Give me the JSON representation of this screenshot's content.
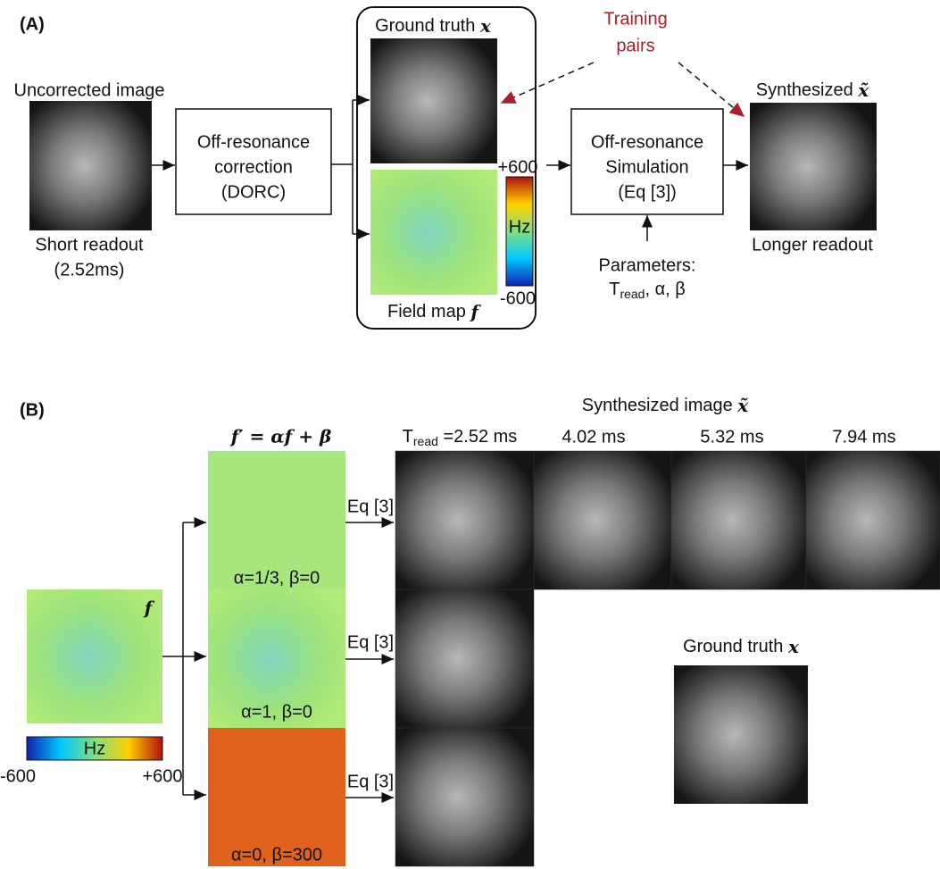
{
  "panel_a": {
    "label": "(A)",
    "input_title": "Uncorrected image",
    "input_caption": [
      "Short readout",
      "(2.52ms)"
    ],
    "correction_box": [
      "Off-resonance",
      "correction",
      "(DORC)"
    ],
    "ground_truth": {
      "text": "Ground truth",
      "symbol": "x"
    },
    "colorbar": {
      "max": "+600",
      "unit": "Hz",
      "min": "-600"
    },
    "field_map": {
      "text": "Field map",
      "symbol": "f"
    },
    "training_pairs": [
      "Training",
      "pairs"
    ],
    "simulation_box": [
      "Off-resonance",
      "Simulation",
      "(Eq [3])"
    ],
    "parameters": {
      "title": "Parameters:",
      "base": "T",
      "sub": "read",
      "rest": ", α, β"
    },
    "synthesized": {
      "text": "Synthesized",
      "symbol": "x̃"
    },
    "output_caption": "Longer readout"
  },
  "panel_b": {
    "label": "(B)",
    "title": {
      "text": "Synthesized image",
      "symbol": "x̃"
    },
    "formula": "f′ = αf + β",
    "first_header": {
      "base": "T",
      "sub": "read",
      "rest": " =2.52 ms"
    },
    "headers": [
      "4.02 ms",
      "5.32 ms",
      "7.94 ms"
    ],
    "eq_labels": [
      "Eq [3]",
      "Eq [3]",
      "Eq [3]"
    ],
    "map_labels": [
      "α=1/3, β=0",
      "α=1, β=0",
      "α=0, β=300"
    ],
    "field_symbol": "f",
    "colorbar": {
      "unit": "Hz",
      "min": "-600",
      "max": "+600"
    },
    "ground_truth": {
      "text": "Ground truth",
      "symbol": "x"
    }
  }
}
